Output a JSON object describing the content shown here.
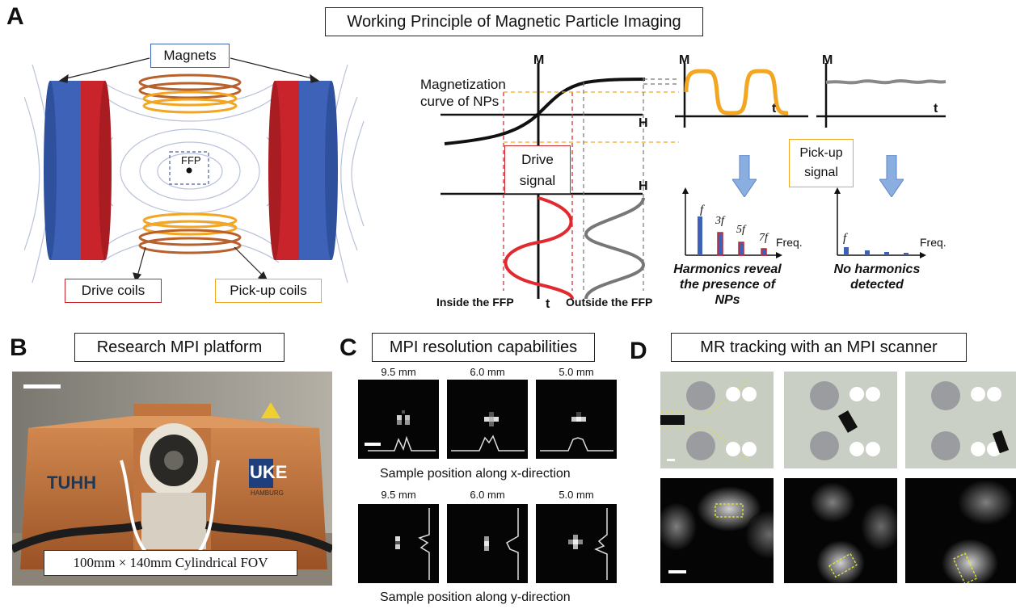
{
  "panelA": {
    "letter": "A",
    "title": "Working Principle of Magnetic Particle Imaging",
    "magnets": "Magnets",
    "ffp": "FFP",
    "drive_coils": "Drive coils",
    "pickup_coils": "Pick-up coils",
    "M": "M",
    "H": "H",
    "t": "t",
    "magnetization_line1": "Magnetization",
    "magnetization_line2": "curve of NPs",
    "drive_signal_line1": "Drive",
    "drive_signal_line2": "signal",
    "pickup_signal_line1": "Pick-up",
    "pickup_signal_line2": "signal",
    "inside_ffp": "Inside the FFP",
    "outside_ffp": "Outside the FFP",
    "harmonics_line1": "Harmonics reveal",
    "harmonics_line2": "the presence of",
    "harmonics_line3": "NPs",
    "no_harmonics_line1": "No harmonics",
    "no_harmonics_line2": "detected",
    "freq": "Freq.",
    "f": "f",
    "3f": "3f",
    "5f": "5f",
    "7f": "7f",
    "colors": {
      "blue": "#3d62b8",
      "red": "#c9242c",
      "orange": "#f2a622",
      "copper": "#b8612c",
      "arrow": "#8aaee0"
    }
  },
  "panelB": {
    "letter": "B",
    "title": "Research MPI platform",
    "tuhh": "TUHH",
    "uke": "UKE",
    "hamburg": "HAMBURG",
    "fov": "100mm × 140mm Cylindrical FOV"
  },
  "panelC": {
    "letter": "C",
    "title": "MPI resolution capabilities",
    "top_labels": [
      "9.5 mm",
      "6.0 mm",
      "5.0 mm"
    ],
    "bottom_labels": [
      "9.5 mm",
      "6.0 mm",
      "5.0 mm"
    ],
    "x_caption": "Sample position along x-direction",
    "y_caption": "Sample position along y-direction"
  },
  "panelD": {
    "letter": "D",
    "title": "MR tracking with an MPI scanner"
  }
}
